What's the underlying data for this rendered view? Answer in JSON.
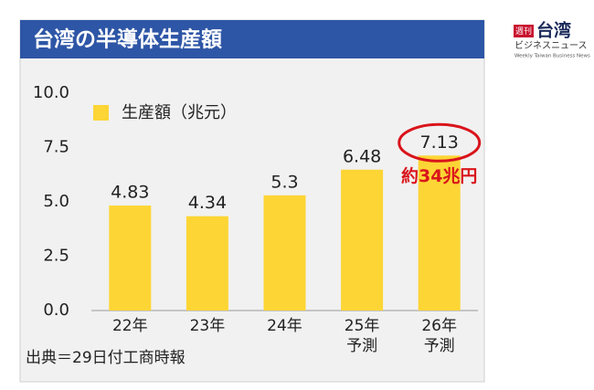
{
  "chart_data": {
    "type": "bar",
    "title": "台湾の半導体生産額",
    "categories": [
      "22年",
      "23年",
      "24年",
      "25年\n予測",
      "26年\n予測"
    ],
    "values": [
      4.83,
      4.34,
      5.3,
      6.48,
      7.13
    ],
    "color": "#fdd535",
    "legend": "生産額（兆元）",
    "ylim": [
      0,
      10
    ],
    "yticks": [
      {
        "value": 0,
        "label": "0.0"
      },
      {
        "value": 2.5,
        "label": "2.5"
      },
      {
        "value": 5,
        "label": "5.0"
      },
      {
        "value": 7.5,
        "label": "7.5"
      },
      {
        "value": 10,
        "label": "10.0"
      }
    ],
    "grid": false,
    "annotation": "約34兆円",
    "source": "出典＝29日付工商時報"
  },
  "logo": {
    "badge": "週刊",
    "name": "台湾",
    "subtitle": "ビジネスニュース",
    "english": "Weekly Taiwan Business News"
  }
}
